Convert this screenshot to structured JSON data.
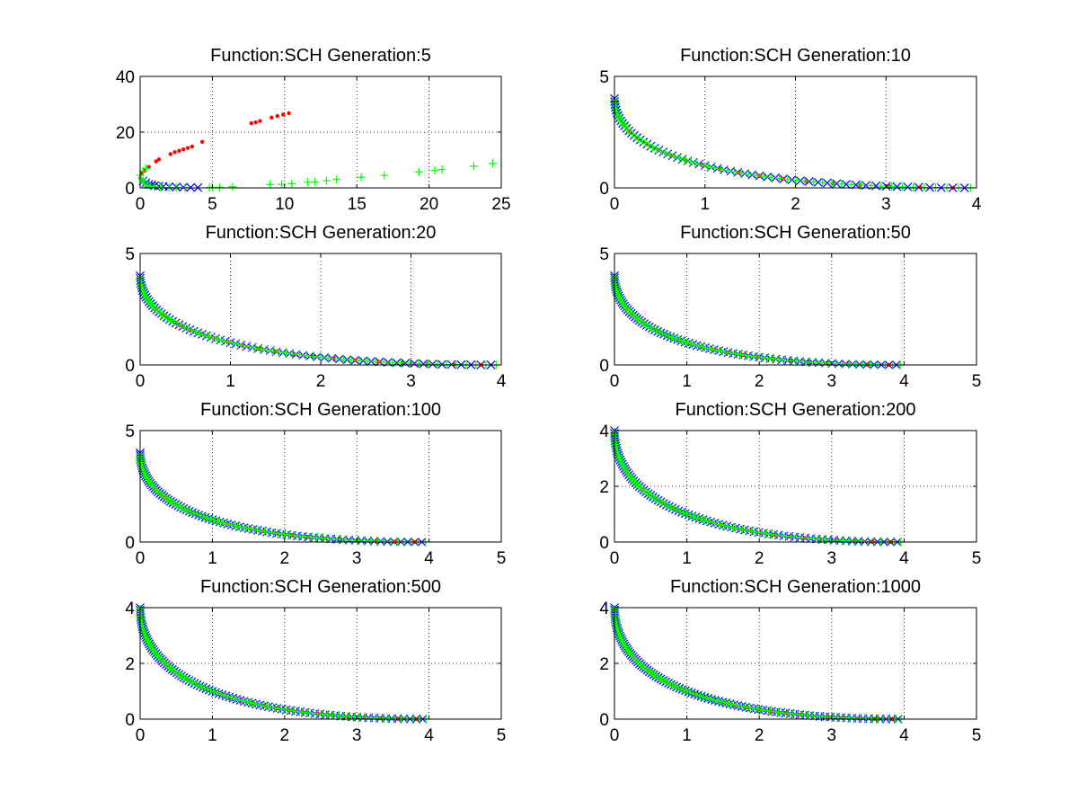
{
  "colors": {
    "background": "#ffffff",
    "axes": "#000000",
    "grid": "#000000",
    "series_blue": "#0000ff",
    "series_red": "#ff0000",
    "series_green": "#00ff00"
  },
  "chart_data": [
    {
      "type": "scatter",
      "title": "Function:SCH  Generation:5",
      "xlabel": "",
      "ylabel": "",
      "xlim": [
        0,
        25
      ],
      "ylim": [
        0,
        40
      ],
      "xticks": [
        0,
        5,
        10,
        15,
        20,
        25
      ],
      "yticks": [
        0,
        20,
        40
      ],
      "grid": true,
      "series": [
        {
          "color": "#0000ff",
          "marker": "x",
          "points": [
            [
              0.2,
              2.5
            ],
            [
              0.4,
              1.8
            ],
            [
              0.6,
              1.3
            ],
            [
              0.8,
              1.1
            ],
            [
              1.0,
              0.8
            ],
            [
              1.3,
              0.6
            ],
            [
              1.6,
              0.5
            ],
            [
              2.0,
              0.4
            ],
            [
              2.5,
              0.3
            ],
            [
              3.0,
              0.2
            ],
            [
              3.5,
              0.15
            ],
            [
              4.0,
              0.1
            ]
          ]
        },
        {
          "color": "#ff0000",
          "marker": ".",
          "points": [
            [
              0.1,
              5.2
            ],
            [
              0.3,
              6.1
            ],
            [
              0.6,
              7.5
            ],
            [
              1.1,
              9.5
            ],
            [
              1.3,
              10.2
            ],
            [
              2.1,
              12.1
            ],
            [
              2.4,
              12.8
            ],
            [
              2.7,
              13.3
            ],
            [
              3.0,
              13.8
            ],
            [
              3.3,
              14.3
            ],
            [
              3.6,
              14.8
            ],
            [
              4.3,
              16.5
            ],
            [
              7.7,
              23.2
            ],
            [
              8.0,
              23.5
            ],
            [
              8.3,
              24.0
            ],
            [
              9.1,
              25.2
            ],
            [
              9.5,
              25.8
            ],
            [
              9.9,
              26.3
            ],
            [
              10.3,
              26.8
            ]
          ]
        },
        {
          "color": "#00ff00",
          "marker": "+",
          "points": [
            [
              0.0,
              4.5
            ],
            [
              0.1,
              3.3
            ],
            [
              0.2,
              2.5
            ],
            [
              0.2,
              6.0
            ],
            [
              0.4,
              7.0
            ],
            [
              0.3,
              1.6
            ],
            [
              0.5,
              1.0
            ],
            [
              0.7,
              0.6
            ],
            [
              1.0,
              0.4
            ],
            [
              1.4,
              0.2
            ],
            [
              2.0,
              0.1
            ],
            [
              2.5,
              0.1
            ],
            [
              3.1,
              0.1
            ],
            [
              4.8,
              0.1
            ],
            [
              5.0,
              0.2
            ],
            [
              5.5,
              0.2
            ],
            [
              6.4,
              0.4
            ],
            [
              9.0,
              1.2
            ],
            [
              9.8,
              1.3
            ],
            [
              10.5,
              1.5
            ],
            [
              11.6,
              2.0
            ],
            [
              12.1,
              2.1
            ],
            [
              12.9,
              2.6
            ],
            [
              13.6,
              3.0
            ],
            [
              15.3,
              3.8
            ],
            [
              16.9,
              4.5
            ],
            [
              19.3,
              5.7
            ],
            [
              20.4,
              6.2
            ],
            [
              20.9,
              6.6
            ],
            [
              23.1,
              7.8
            ],
            [
              24.4,
              8.7
            ]
          ]
        }
      ]
    },
    {
      "type": "scatter",
      "title": "Function:SCH  Generation:10",
      "xlabel": "",
      "ylabel": "",
      "xlim": [
        0,
        4
      ],
      "ylim": [
        0,
        5
      ],
      "xticks": [
        0,
        1,
        2,
        3,
        4
      ],
      "yticks": [
        0,
        5
      ],
      "grid": true,
      "front": {
        "xmax": 4.0,
        "n": 60
      }
    },
    {
      "type": "scatter",
      "title": "Function:SCH  Generation:20",
      "xlabel": "",
      "ylabel": "",
      "xlim": [
        0,
        4
      ],
      "ylim": [
        0,
        5
      ],
      "xticks": [
        0,
        1,
        2,
        3,
        4
      ],
      "yticks": [
        0,
        5
      ],
      "grid": true,
      "front": {
        "xmax": 4.0,
        "n": 70
      }
    },
    {
      "type": "scatter",
      "title": "Function:SCH  Generation:50",
      "xlabel": "",
      "ylabel": "",
      "xlim": [
        0,
        5
      ],
      "ylim": [
        0,
        5
      ],
      "xticks": [
        0,
        1,
        2,
        3,
        4,
        5
      ],
      "yticks": [
        0,
        5
      ],
      "grid": true,
      "front": {
        "xmax": 4.0,
        "n": 75
      }
    },
    {
      "type": "scatter",
      "title": "Function:SCH  Generation:100",
      "xlabel": "",
      "ylabel": "",
      "xlim": [
        0,
        5
      ],
      "ylim": [
        0,
        5
      ],
      "xticks": [
        0,
        1,
        2,
        3,
        4,
        5
      ],
      "yticks": [
        0,
        5
      ],
      "grid": true,
      "front": {
        "xmax": 4.0,
        "n": 80
      }
    },
    {
      "type": "scatter",
      "title": "Function:SCH  Generation:200",
      "xlabel": "",
      "ylabel": "",
      "xlim": [
        0,
        5
      ],
      "ylim": [
        0,
        4
      ],
      "xticks": [
        0,
        1,
        2,
        3,
        4,
        5
      ],
      "yticks": [
        0,
        2,
        4
      ],
      "grid": true,
      "front": {
        "xmax": 4.0,
        "n": 85
      }
    },
    {
      "type": "scatter",
      "title": "Function:SCH  Generation:500",
      "xlabel": "",
      "ylabel": "",
      "xlim": [
        0,
        5
      ],
      "ylim": [
        0,
        4
      ],
      "xticks": [
        0,
        1,
        2,
        3,
        4,
        5
      ],
      "yticks": [
        0,
        2,
        4
      ],
      "grid": true,
      "front": {
        "xmax": 4.0,
        "n": 90
      }
    },
    {
      "type": "scatter",
      "title": "Function:SCH  Generation:1000",
      "xlabel": "",
      "ylabel": "",
      "xlim": [
        0,
        5
      ],
      "ylim": [
        0,
        4
      ],
      "xticks": [
        0,
        1,
        2,
        3,
        4,
        5
      ],
      "yticks": [
        0,
        2,
        4
      ],
      "grid": true,
      "front": {
        "xmax": 4.0,
        "n": 95
      }
    }
  ]
}
